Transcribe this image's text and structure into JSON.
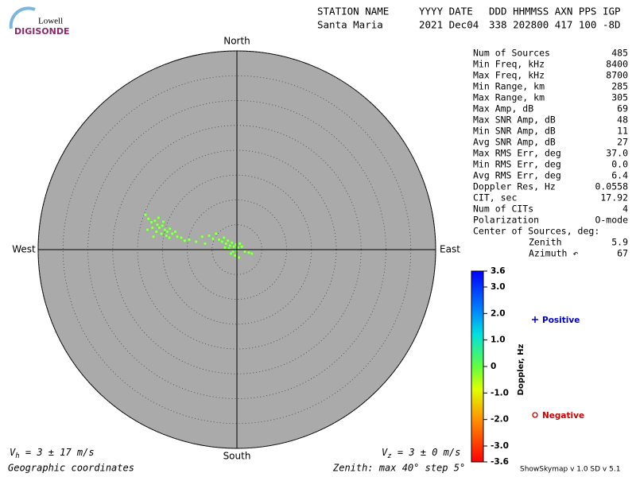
{
  "logo": {
    "top": "Lowell",
    "bottom": "DIGISONDE"
  },
  "header": {
    "columns": [
      "STATION NAME",
      "YYYY DATE",
      "DDD HHMMSS AXN PPS IGP"
    ],
    "values": [
      "Santa Maria",
      "2021 Dec04",
      "338 202800 417 100 -8D"
    ]
  },
  "chart_data": {
    "type": "scatter",
    "directions": {
      "north": "North",
      "south": "South",
      "west": "West",
      "east": "East"
    },
    "rlim": [
      0,
      40
    ],
    "rticks": [
      5,
      10,
      15,
      20,
      25,
      30,
      35,
      40
    ],
    "color": "#99ff66",
    "x": [
      -18.4,
      -17.8,
      -17.2,
      -16.5,
      -16.0,
      -15.6,
      -15.0,
      -14.5,
      -14.0,
      -13.5,
      -13.0,
      -12.4,
      -17.0,
      -16.2,
      -15.2,
      -14.2,
      -18.0,
      -12.0,
      -11.2,
      -10.5,
      -9.6,
      -15.8,
      -14.8,
      -13.6,
      -16.8,
      -5.6,
      -4.8,
      -4.2,
      -3.6,
      -3.0,
      -2.6,
      -2.2,
      -1.8,
      -1.4,
      -1.0,
      -0.6,
      -0.2,
      0.2,
      0.6,
      -1.6,
      -2.4,
      -0.8,
      0.0,
      1.0,
      1.6,
      2.4,
      3.0,
      -0.4,
      -1.2,
      0.4,
      -7.0,
      -8.2,
      -6.4
    ],
    "y": [
      7.0,
      6.2,
      5.5,
      5.8,
      5.0,
      4.4,
      4.8,
      4.0,
      3.6,
      4.2,
      3.2,
      3.6,
      4.4,
      3.6,
      3.2,
      2.8,
      4.0,
      2.6,
      2.4,
      1.8,
      2.0,
      6.4,
      5.6,
      2.4,
      2.6,
      2.8,
      2.2,
      3.2,
      2.0,
      1.6,
      2.4,
      1.2,
      1.8,
      0.8,
      1.4,
      0.6,
      1.0,
      0.4,
      1.2,
      0.2,
      0.4,
      -0.4,
      -0.2,
      0.6,
      -0.4,
      -0.6,
      -0.8,
      -1.2,
      -0.8,
      -1.6,
      2.6,
      1.6,
      1.2
    ],
    "colorbar": {
      "label": "Doppler, Hz",
      "lim": [
        -3.6,
        3.6
      ],
      "ticks": [
        3.6,
        {
          "value": 3,
          "label": "3.0"
        },
        {
          "value": 2,
          "label": "2.0"
        },
        {
          "value": 1,
          "label": "1.0"
        },
        0,
        {
          "value": -1,
          "label": "-1.0"
        },
        {
          "value": -2,
          "label": "-2.0"
        },
        {
          "value": -3,
          "label": "-3.0"
        },
        -3.6
      ]
    },
    "legend": {
      "positive": "Positive",
      "negative": "Negative"
    }
  },
  "stats": {
    "rows": [
      [
        "Num of Sources",
        "485"
      ],
      [
        "Min Freq, kHz",
        "8400"
      ],
      [
        "Max Freq, kHz",
        "8700"
      ],
      [
        "Min Range, km",
        "285"
      ],
      [
        "Max Range, km",
        "305"
      ],
      [
        "Max Amp, dB",
        "69"
      ],
      [
        "Max SNR Amp, dB",
        "48"
      ],
      [
        "Min SNR Amp, dB",
        "11"
      ],
      [
        "Avg SNR Amp, dB",
        "27"
      ],
      [
        "Max RMS Err, deg",
        "37.0"
      ],
      [
        "Min RMS Err, deg",
        "0.0"
      ],
      [
        "Avg RMS Err, deg",
        "6.4"
      ],
      [
        "Doppler Res, Hz",
        "0.0558"
      ],
      [
        "CIT, sec",
        "17.92"
      ],
      [
        "Num of CITs",
        "4"
      ],
      [
        "Polarization",
        "O-mode"
      ]
    ],
    "center_title": "Center of Sources, deg:",
    "center_rows": [
      [
        "Zenith",
        "5.9"
      ],
      [
        "Azimuth ↶",
        "67"
      ]
    ]
  },
  "footer": {
    "vh": {
      "symbol": "V",
      "subscript": "h",
      "text": " = 3 ± 17 m/s"
    },
    "vz": {
      "symbol": "V",
      "subscript": "z",
      "text": " = 3 ± 0 m/s"
    },
    "coordinates": "Geographic coordinates",
    "zenith": "Zenith: max 40°  step 5°",
    "version": "ShowSkymap v 1.0  SD v 5.1"
  }
}
